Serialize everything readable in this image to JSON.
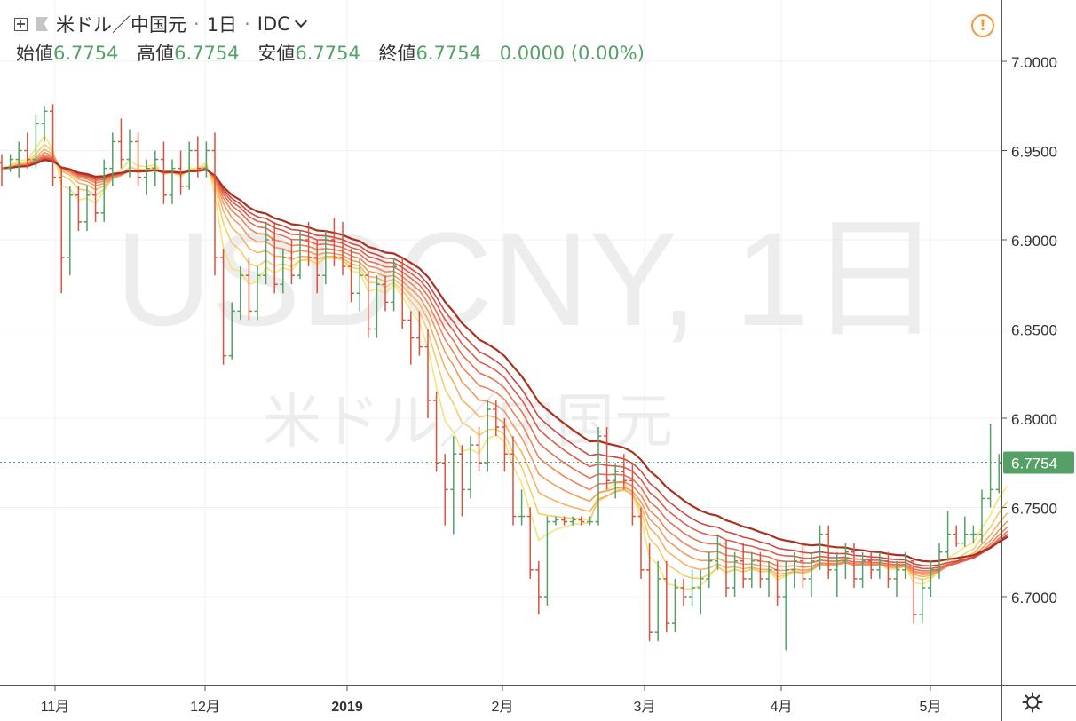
{
  "header": {
    "symbol": "米ドル／中国元",
    "interval": "1日",
    "source": "IDC"
  },
  "ohlc": {
    "open_label": "始値",
    "open": "6.7754",
    "high_label": "高値",
    "high": "6.7754",
    "low_label": "安値",
    "low": "6.7754",
    "close_label": "終値",
    "close": "6.7754",
    "change": "0.0000 (0.00%)"
  },
  "watermark": {
    "line1": "USDCNY, 1日",
    "line2": "米ドル／中国元"
  },
  "price_label": "6.7754",
  "colors": {
    "up": "#55a067",
    "down": "#d9533f",
    "accent_orange": "#f29a3b",
    "ribbon": [
      "#f6e37a",
      "#f6cd6e",
      "#f4b466",
      "#f09c5f",
      "#ec865a",
      "#e57155",
      "#dc5c4e",
      "#cc4a42",
      "#a8321f"
    ]
  },
  "icons": [
    "plus-square-icon",
    "flag-icon",
    "chevron-down-icon",
    "alert-icon",
    "gear-icon"
  ],
  "chart_data": {
    "type": "ohlc",
    "x_ticks": [
      "11月",
      "12月",
      "2019",
      "2月",
      "3月",
      "4月",
      "5月"
    ],
    "y_ticks": [
      "7.0000",
      "6.9500",
      "6.9000",
      "6.8500",
      "6.8000",
      "6.7500",
      "6.7000"
    ],
    "ylim": [
      6.65,
      7.03
    ],
    "current_price": 6.7754,
    "bars": [
      [
        6.943,
        6.948,
        6.93,
        6.94
      ],
      [
        6.94,
        6.948,
        6.938,
        6.945
      ],
      [
        6.945,
        6.955,
        6.935,
        6.95
      ],
      [
        6.95,
        6.96,
        6.94,
        6.945
      ],
      [
        6.945,
        6.97,
        6.94,
        6.965
      ],
      [
        6.965,
        6.975,
        6.955,
        6.972
      ],
      [
        6.972,
        6.976,
        6.93,
        6.935
      ],
      [
        6.935,
        6.94,
        6.87,
        6.89
      ],
      [
        6.89,
        6.93,
        6.88,
        6.925
      ],
      [
        6.925,
        6.93,
        6.905,
        6.91
      ],
      [
        6.91,
        6.93,
        6.905,
        6.925
      ],
      [
        6.925,
        6.935,
        6.91,
        6.915
      ],
      [
        6.915,
        6.945,
        6.91,
        6.94
      ],
      [
        6.94,
        6.96,
        6.93,
        6.955
      ],
      [
        6.955,
        6.968,
        6.94,
        6.945
      ],
      [
        6.945,
        6.962,
        6.935,
        6.955
      ],
      [
        6.955,
        6.96,
        6.93,
        6.935
      ],
      [
        6.935,
        6.945,
        6.925,
        6.94
      ],
      [
        6.94,
        6.95,
        6.93,
        6.945
      ],
      [
        6.945,
        6.955,
        6.92,
        6.925
      ],
      [
        6.925,
        6.945,
        6.92,
        6.94
      ],
      [
        6.94,
        6.95,
        6.925,
        6.93
      ],
      [
        6.93,
        6.955,
        6.928,
        6.95
      ],
      [
        6.95,
        6.958,
        6.935,
        6.94
      ],
      [
        6.94,
        6.955,
        6.935,
        6.95
      ],
      [
        6.95,
        6.96,
        6.88,
        6.89
      ],
      [
        6.89,
        6.895,
        6.83,
        6.835
      ],
      [
        6.835,
        6.865,
        6.833,
        6.86
      ],
      [
        6.86,
        6.885,
        6.855,
        6.88
      ],
      [
        6.88,
        6.89,
        6.855,
        6.86
      ],
      [
        6.86,
        6.885,
        6.855,
        6.88
      ],
      [
        6.88,
        6.91,
        6.875,
        6.9
      ],
      [
        6.9,
        6.91,
        6.87,
        6.875
      ],
      [
        6.875,
        6.895,
        6.87,
        6.89
      ],
      [
        6.89,
        6.9,
        6.875,
        6.88
      ],
      [
        6.88,
        6.905,
        6.878,
        6.9
      ],
      [
        6.9,
        6.91,
        6.885,
        6.89
      ],
      [
        6.89,
        6.9,
        6.87,
        6.88
      ],
      [
        6.88,
        6.905,
        6.875,
        6.9
      ],
      [
        6.9,
        6.912,
        6.885,
        6.89
      ],
      [
        6.89,
        6.91,
        6.88,
        6.885
      ],
      [
        6.885,
        6.895,
        6.865,
        6.87
      ],
      [
        6.87,
        6.89,
        6.86,
        6.88
      ],
      [
        6.88,
        6.882,
        6.845,
        6.85
      ],
      [
        6.85,
        6.88,
        6.845,
        6.875
      ],
      [
        6.875,
        6.88,
        6.86,
        6.865
      ],
      [
        6.865,
        6.89,
        6.86,
        6.885
      ],
      [
        6.885,
        6.89,
        6.85,
        6.855
      ],
      [
        6.855,
        6.86,
        6.83,
        6.845
      ],
      [
        6.845,
        6.86,
        6.835,
        6.84
      ],
      [
        6.84,
        6.85,
        6.8,
        6.81
      ],
      [
        6.81,
        6.815,
        6.77,
        6.775
      ],
      [
        6.775,
        6.78,
        6.74,
        6.76
      ],
      [
        6.76,
        6.79,
        6.735,
        6.78
      ],
      [
        6.78,
        6.785,
        6.745,
        6.76
      ],
      [
        6.76,
        6.79,
        6.755,
        6.785
      ],
      [
        6.785,
        6.795,
        6.77,
        6.775
      ],
      [
        6.775,
        6.81,
        6.77,
        6.805
      ],
      [
        6.805,
        6.81,
        6.79,
        6.795
      ],
      [
        6.795,
        6.8,
        6.77,
        6.78
      ],
      [
        6.78,
        6.79,
        6.74,
        6.745
      ],
      [
        6.745,
        6.76,
        6.74,
        6.745
      ],
      [
        6.745,
        6.75,
        6.71,
        6.715
      ],
      [
        6.715,
        6.72,
        6.69,
        6.7
      ],
      [
        6.7,
        6.745,
        6.695,
        6.742
      ],
      [
        6.742,
        6.745,
        6.74,
        6.743
      ],
      [
        6.743,
        6.745,
        6.74,
        6.742
      ],
      [
        6.742,
        6.745,
        6.74,
        6.743
      ],
      [
        6.743,
        6.745,
        6.74,
        6.742
      ],
      [
        6.742,
        6.745,
        6.74,
        6.742
      ],
      [
        6.742,
        6.795,
        6.74,
        6.79
      ],
      [
        6.79,
        6.795,
        6.76,
        6.765
      ],
      [
        6.765,
        6.775,
        6.755,
        6.77
      ],
      [
        6.77,
        6.78,
        6.76,
        6.765
      ],
      [
        6.765,
        6.775,
        6.74,
        6.745
      ],
      [
        6.745,
        6.75,
        6.71,
        6.715
      ],
      [
        6.715,
        6.73,
        6.675,
        6.68
      ],
      [
        6.68,
        6.72,
        6.675,
        6.71
      ],
      [
        6.71,
        6.72,
        6.68,
        6.685
      ],
      [
        6.685,
        6.71,
        6.68,
        6.705
      ],
      [
        6.705,
        6.71,
        6.695,
        6.7
      ],
      [
        6.7,
        6.715,
        6.695,
        6.705
      ],
      [
        6.705,
        6.715,
        6.69,
        6.71
      ],
      [
        6.71,
        6.725,
        6.705,
        6.72
      ],
      [
        6.72,
        6.735,
        6.715,
        6.73
      ],
      [
        6.73,
        6.732,
        6.7,
        6.705
      ],
      [
        6.705,
        6.725,
        6.7,
        6.72
      ],
      [
        6.72,
        6.73,
        6.705,
        6.71
      ],
      [
        6.71,
        6.725,
        6.705,
        6.72
      ],
      [
        6.72,
        6.725,
        6.705,
        6.71
      ],
      [
        6.71,
        6.72,
        6.7,
        6.715
      ],
      [
        6.715,
        6.72,
        6.695,
        6.7
      ],
      [
        6.7,
        6.72,
        6.67,
        6.715
      ],
      [
        6.715,
        6.725,
        6.705,
        6.72
      ],
      [
        6.72,
        6.73,
        6.705,
        6.71
      ],
      [
        6.71,
        6.725,
        6.7,
        6.72
      ],
      [
        6.72,
        6.74,
        6.715,
        6.735
      ],
      [
        6.735,
        6.74,
        6.71,
        6.715
      ],
      [
        6.715,
        6.725,
        6.7,
        6.72
      ],
      [
        6.72,
        6.73,
        6.71,
        6.725
      ],
      [
        6.725,
        6.73,
        6.705,
        6.71
      ],
      [
        6.71,
        6.725,
        6.705,
        6.72
      ],
      [
        6.72,
        6.725,
        6.71,
        6.715
      ],
      [
        6.715,
        6.725,
        6.71,
        6.72
      ],
      [
        6.72,
        6.725,
        6.705,
        6.71
      ],
      [
        6.71,
        6.72,
        6.7,
        6.715
      ],
      [
        6.715,
        6.725,
        6.71,
        6.72
      ],
      [
        6.72,
        6.722,
        6.685,
        6.69
      ],
      [
        6.69,
        6.71,
        6.685,
        6.705
      ],
      [
        6.705,
        6.72,
        6.7,
        6.715
      ],
      [
        6.715,
        6.73,
        6.71,
        6.725
      ],
      [
        6.725,
        6.748,
        6.72,
        6.735
      ],
      [
        6.735,
        6.74,
        6.728,
        6.73
      ],
      [
        6.73,
        6.745,
        6.728,
        6.735
      ],
      [
        6.735,
        6.74,
        6.73,
        6.735
      ],
      [
        6.735,
        6.76,
        6.73,
        6.755
      ],
      [
        6.755,
        6.797,
        6.75,
        6.76
      ],
      [
        6.76,
        6.78,
        6.758,
        6.775
      ],
      [
        6.775,
        6.778,
        6.77,
        6.7754
      ]
    ],
    "ribbon_periods": [
      5,
      8,
      11,
      14,
      17,
      20,
      23,
      26,
      30
    ]
  }
}
